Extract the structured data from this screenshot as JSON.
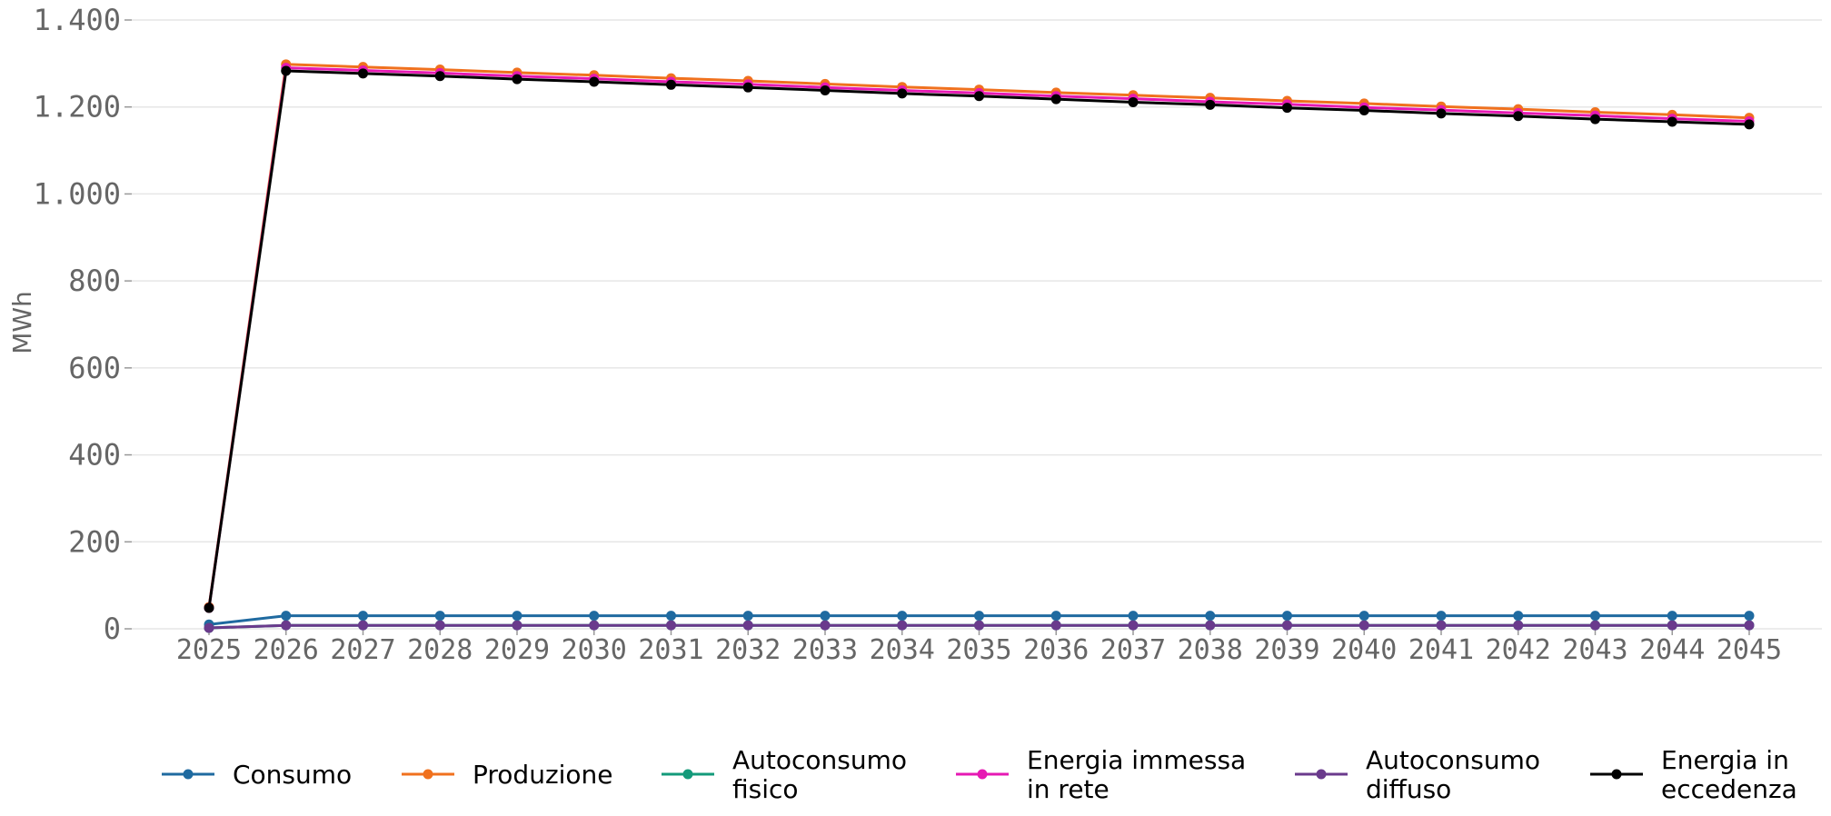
{
  "chart_data": {
    "type": "line",
    "title": "",
    "xlabel": "",
    "ylabel": "MWh",
    "ylim": [
      0,
      1400
    ],
    "yticks": [
      0,
      200,
      400,
      600,
      800,
      1000,
      1200,
      1400
    ],
    "ytick_labels": [
      "0",
      "200",
      "400",
      "600",
      "800",
      "1.000",
      "1.200",
      "1.400"
    ],
    "grid": "horizontal",
    "legend_position": "bottom",
    "x": [
      "2025",
      "2026",
      "2027",
      "2028",
      "2029",
      "2030",
      "2031",
      "2032",
      "2033",
      "2034",
      "2035",
      "2036",
      "2037",
      "2038",
      "2039",
      "2040",
      "2041",
      "2042",
      "2043",
      "2044",
      "2045"
    ],
    "series": [
      {
        "name": "Consumo",
        "legend_lines": [
          "Consumo"
        ],
        "color": "#1f6aa0",
        "values": [
          10,
          30,
          30,
          30,
          30,
          30,
          30,
          30,
          30,
          30,
          30,
          30,
          30,
          30,
          30,
          30,
          30,
          30,
          30,
          30,
          30
        ]
      },
      {
        "name": "Produzione",
        "legend_lines": [
          "Produzione"
        ],
        "color": "#f0711e",
        "values": [
          50,
          1298,
          1292,
          1286,
          1279,
          1273,
          1266,
          1260,
          1253,
          1246,
          1240,
          1233,
          1227,
          1221,
          1214,
          1208,
          1201,
          1195,
          1188,
          1182,
          1175
        ]
      },
      {
        "name": "Autoconsumo fisico",
        "legend_lines": [
          "Autoconsumo",
          "fisico"
        ],
        "color": "#139a7a",
        "values": [
          2,
          8,
          8,
          8,
          8,
          8,
          8,
          8,
          8,
          8,
          8,
          8,
          8,
          8,
          8,
          8,
          8,
          8,
          8,
          8,
          8
        ]
      },
      {
        "name": "Energia immessa in rete",
        "legend_lines": [
          "Energia immessa",
          "in rete"
        ],
        "color": "#e619b3",
        "values": [
          48,
          1290,
          1284,
          1278,
          1271,
          1265,
          1258,
          1252,
          1245,
          1238,
          1232,
          1225,
          1219,
          1212,
          1206,
          1199,
          1193,
          1186,
          1180,
          1173,
          1167
        ]
      },
      {
        "name": "Autoconsumo diffuso",
        "legend_lines": [
          "Autoconsumo",
          "diffuso"
        ],
        "color": "#6a3a8c",
        "values": [
          2,
          8,
          8,
          8,
          8,
          8,
          8,
          8,
          8,
          8,
          8,
          8,
          8,
          8,
          8,
          8,
          8,
          8,
          8,
          8,
          8
        ]
      },
      {
        "name": "Energia in eccedenza",
        "legend_lines": [
          "Energia in",
          "eccedenza"
        ],
        "color": "#000000",
        "values": [
          48,
          1283,
          1277,
          1271,
          1264,
          1258,
          1251,
          1245,
          1238,
          1231,
          1225,
          1218,
          1211,
          1205,
          1198,
          1192,
          1185,
          1179,
          1172,
          1166,
          1160
        ]
      }
    ]
  }
}
